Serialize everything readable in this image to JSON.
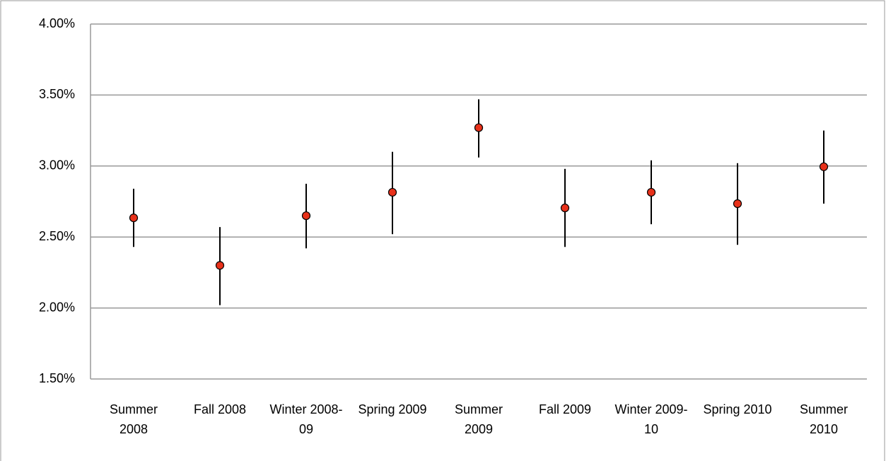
{
  "chart_data": {
    "type": "errorbar",
    "categories": [
      "Summer 2008",
      "Fall 2008",
      "Winter 2008-09",
      "Spring 2009",
      "Summer 2009",
      "Fall 2009",
      "Winter 2009-10",
      "Spring 2010",
      "Summer 2010"
    ],
    "values": [
      2.635,
      2.3,
      2.65,
      2.815,
      3.27,
      2.705,
      2.815,
      2.735,
      2.995
    ],
    "upper": [
      2.84,
      2.57,
      2.875,
      3.1,
      3.47,
      2.98,
      3.04,
      3.02,
      3.25
    ],
    "lower": [
      2.43,
      2.02,
      2.42,
      2.52,
      3.06,
      2.43,
      2.59,
      2.445,
      2.735
    ],
    "color": "#e8311a",
    "ylim": [
      1.5,
      4.0
    ],
    "yticks": [
      {
        "value": 1.5,
        "label": "1.50%"
      },
      {
        "value": 2.0,
        "label": "2.00%"
      },
      {
        "value": 2.5,
        "label": "2.50%"
      },
      {
        "value": 3.0,
        "label": "3.00%"
      },
      {
        "value": 3.5,
        "label": "3.50%"
      },
      {
        "value": 4.0,
        "label": "4.00%"
      }
    ],
    "grid": true
  }
}
